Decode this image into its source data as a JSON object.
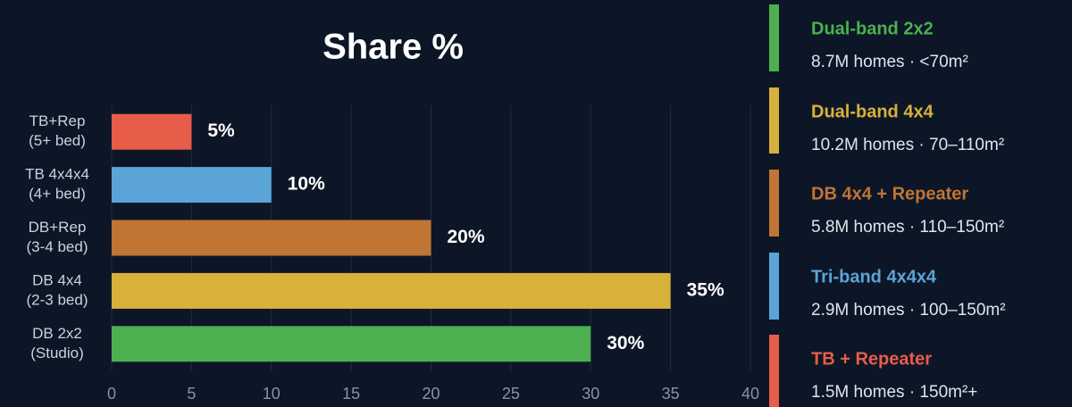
{
  "chart_data": {
    "type": "hbar",
    "title": "Share %",
    "categories": [
      [
        "TB+Rep",
        "(5+ bed)"
      ],
      [
        "TB 4x4x4",
        "(4+ bed)"
      ],
      [
        "DB+Rep",
        "(3-4 bed)"
      ],
      [
        "DB 4x4",
        "(2-3 bed)"
      ],
      [
        "DB 2x2",
        "(Studio)"
      ]
    ],
    "values": [
      5,
      10,
      20,
      35,
      30
    ],
    "value_labels": [
      "5%",
      "10%",
      "20%",
      "35%",
      "30%"
    ],
    "colors": [
      "#e85c4a",
      "#5ba4d8",
      "#c07534",
      "#d8b13a",
      "#4cb050"
    ],
    "xlim": [
      0,
      40
    ],
    "xticks": [
      0,
      5,
      10,
      15,
      20,
      25,
      30,
      35,
      40
    ],
    "grid": true,
    "legend": [
      {
        "name": "Dual-band 2x2",
        "detail": "8.7M homes · <70m²",
        "color": "#4cb050"
      },
      {
        "name": "Dual-band 4x4",
        "detail": "10.2M homes · 70–110m²",
        "color": "#d8b13a"
      },
      {
        "name": "DB 4x4 + Repeater",
        "detail": "5.8M homes · 110–150m²",
        "color": "#c07534"
      },
      {
        "name": "Tri-band 4x4x4",
        "detail": "2.9M homes · 100–150m²",
        "color": "#5ba4d8"
      },
      {
        "name": "TB + Repeater",
        "detail": "1.5M homes · 150m²+",
        "color": "#e85c4a"
      }
    ]
  }
}
